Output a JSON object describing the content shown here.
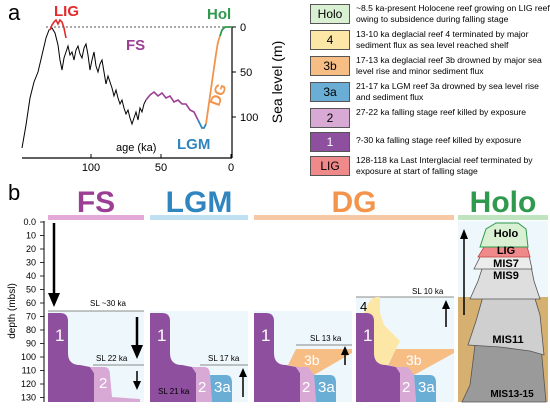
{
  "panel_a": {
    "letter": "a",
    "label_lig": "LIG",
    "label_fs": "FS",
    "label_hol": "Hol",
    "label_dg": "DG",
    "label_lgm": "LGM",
    "xlabel": "age (ka)",
    "ylabel": "Sea level (m)",
    "xticks": [
      "100",
      "50",
      "0"
    ],
    "yticks": [
      "0",
      "50",
      "100"
    ]
  },
  "legend": [
    {
      "code": "Holo",
      "color": "#d9f0d3",
      "text": "~8.5 ka-present Holocene reef growing on LIG reef owing to subsidence during falling stage"
    },
    {
      "code": "4",
      "color": "#fde7a6",
      "text": "13-10 ka deglacial reef 4 terminated by major sediment flux as sea level reached shelf"
    },
    {
      "code": "3b",
      "color": "#f6bd84",
      "text": "17-13 ka deglacial reef 3b drowned by major sea level rise and minor sediment flux"
    },
    {
      "code": "3a",
      "color": "#6aaed6",
      "text": "21-17 ka LGM reef 3a drowned by sea level rise and sediment flux"
    },
    {
      "code": "2",
      "color": "#d9a9d6",
      "text": "27-22 ka falling stage reef killed by exposure"
    },
    {
      "code": "1",
      "color": "#8e4f9f",
      "text": "?-30 ka falling stage reef killed by exposure"
    },
    {
      "code": "LIG",
      "color": "#f08a8a",
      "text": "128-118 ka Last Interglacial reef terminated by exposure at start of falling stage"
    }
  ],
  "panel_b": {
    "letter": "b",
    "headers": [
      {
        "label": "FS",
        "color": "#9b3f95",
        "bar": "#e4a9d8"
      },
      {
        "label": "LGM",
        "color": "#2f86bf",
        "bar": "#bfe1f2"
      },
      {
        "label": "DG",
        "color": "#f2944c",
        "bar": "#f7c8a6"
      },
      {
        "label": "Holo",
        "color": "#2f9a4e",
        "bar": "#bfe4bf"
      }
    ],
    "depth_label": "depth (mbsl)",
    "depth_ticks": [
      "0.0",
      "10",
      "20",
      "30",
      "40",
      "50",
      "60",
      "70",
      "80",
      "90",
      "100",
      "110",
      "120",
      "130"
    ],
    "sl_labels": [
      "SL ~30 ka",
      "SL 22 ka",
      "SL 17 ka",
      "SL 21 ka",
      "SL 13 ka",
      "SL 10 ka"
    ],
    "reef_labels": [
      "1",
      "2",
      "1",
      "2",
      "3a",
      "1",
      "2",
      "3a",
      "3b",
      "1",
      "2",
      "3a",
      "3b",
      "4"
    ],
    "holo_labels": [
      "Holo",
      "LIG",
      "MIS7",
      "MIS9",
      "MIS11",
      "MIS13-15"
    ]
  }
}
